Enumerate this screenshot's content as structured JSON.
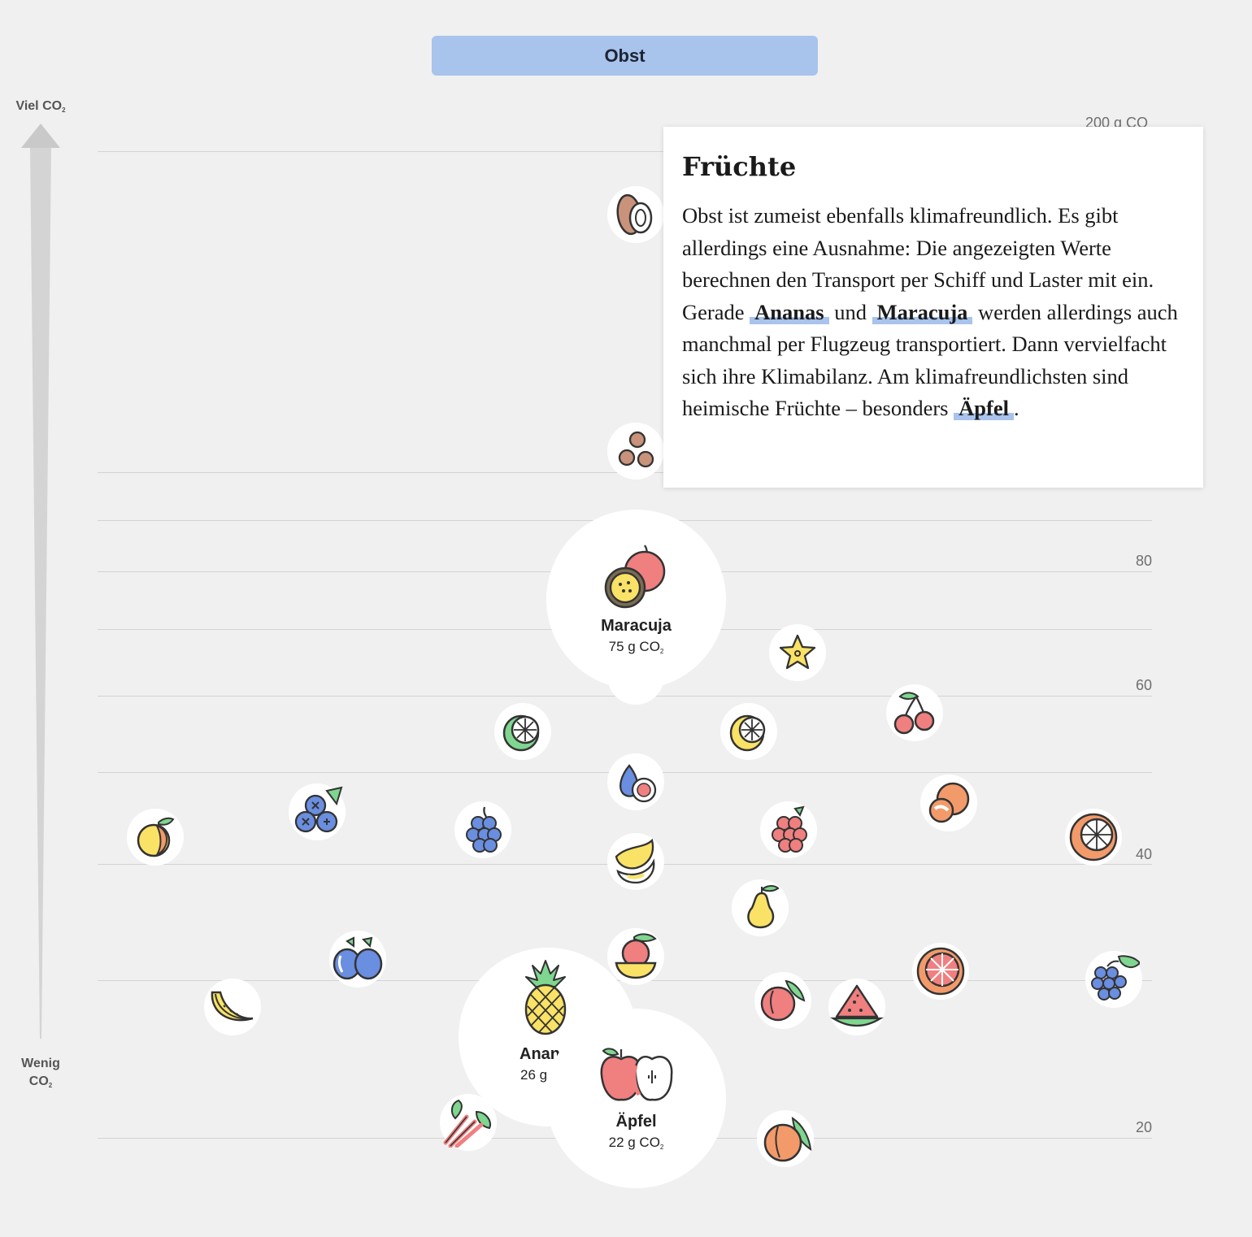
{
  "header": {
    "category_label": "Obst"
  },
  "axis": {
    "top_label": "Viel CO",
    "top_sub": "2",
    "bottom_label": "Wenig",
    "bottom_label2": "CO",
    "bottom_sub": "2"
  },
  "chart_data": {
    "type": "scatter",
    "y_unit": "g CO2",
    "y_ticks": [
      "200 g CO",
      "80",
      "60",
      "40",
      "20"
    ],
    "points": [
      {
        "name": "Maracuja",
        "value": 75,
        "value_label": "75 g CO",
        "value_sub": "2",
        "highlighted": true
      },
      {
        "name": "Ananas",
        "value": 26,
        "value_label": "26 g",
        "highlighted": true
      },
      {
        "name": "Äpfel",
        "value": 22,
        "value_label": "22 g CO",
        "value_sub": "2",
        "highlighted": true
      }
    ]
  },
  "icons": [
    "coconut-icon",
    "lychee-icon",
    "fig-icon",
    "starfruit-icon",
    "lime-icon",
    "lemon-icon",
    "cherry-icon",
    "tangerine-icon",
    "peach-icon",
    "blueberry-icon",
    "grapes-icon",
    "raspberry-icon",
    "banana-icon",
    "orange-icon",
    "pear-icon",
    "plum-icon",
    "melon-icon",
    "mango-icon",
    "nectarine-icon",
    "watermelon-icon",
    "grapefruit-icon",
    "green-grapes-icon",
    "rhubarb-icon",
    "apricot-icon"
  ],
  "colors": {
    "accent": "#a8c3ec",
    "red": "#f07f7f",
    "yellow": "#f9e265",
    "green": "#7fd68f",
    "blue": "#6a8ee0",
    "orange": "#f39a6a",
    "brown": "#c9927a"
  },
  "tooltip": {
    "title": "Früchte",
    "text_1": "Obst ist zumeist ebenfalls klimafreundlich. Es gibt allerdings eine Ausnahme: Die angezeigten Werte berechnen den Transport per Schiff und Laster mit ein. Gerade ",
    "link_1": "Ananas",
    "text_2": " und ",
    "link_2": "Maracuja",
    "text_3": " werden allerdings auch manchmal per Flugzeug transportiert. Dann vervielfacht sich ihre Klimabilanz. Am klimafreundlichsten sind heimische Früchte – besonders ",
    "link_3": "Äpfel",
    "text_4": "."
  }
}
